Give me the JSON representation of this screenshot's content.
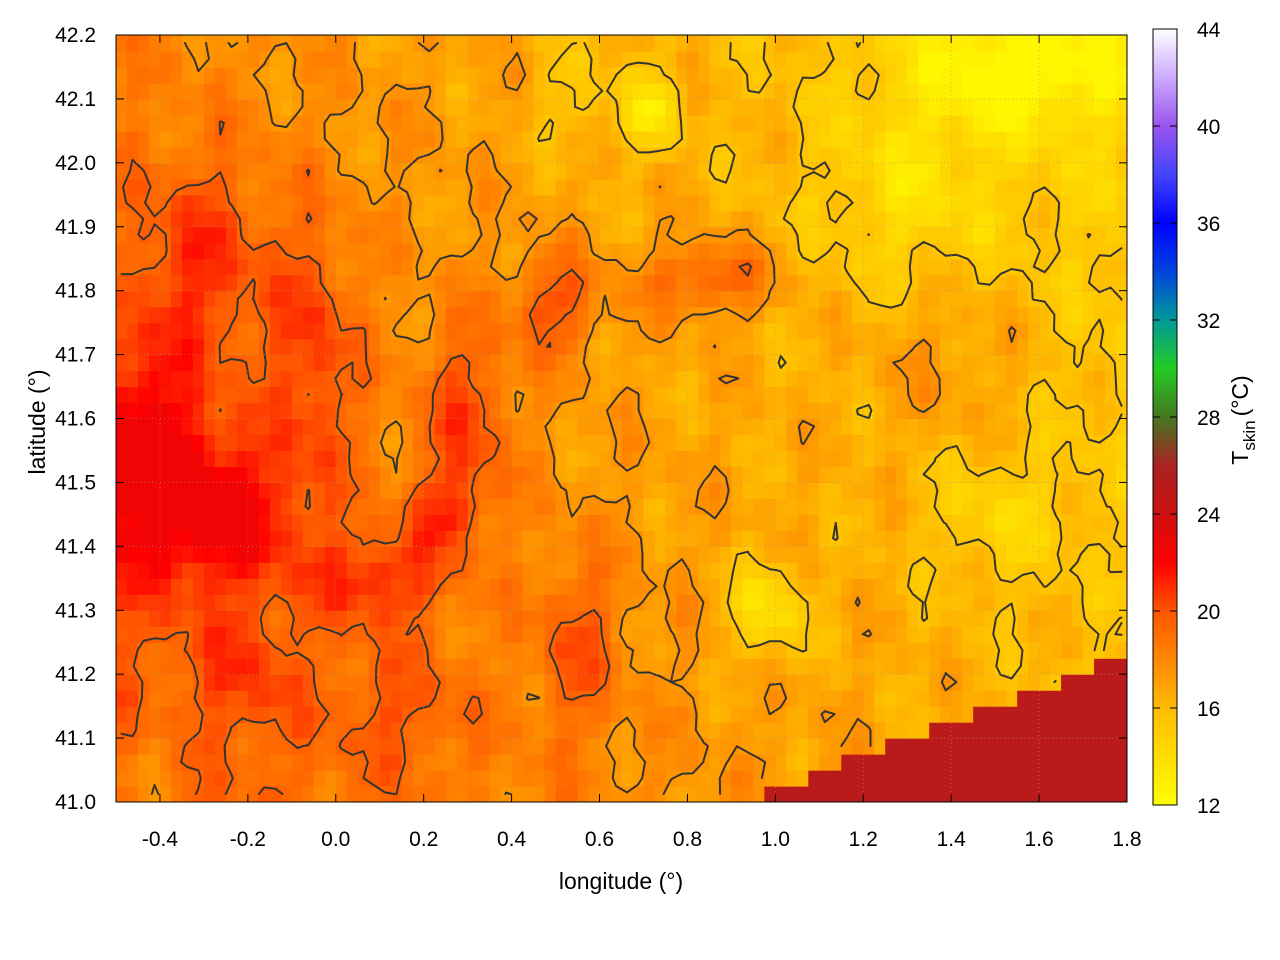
{
  "chart_data": {
    "type": "heatmap",
    "xlabel": "longitude (°)",
    "ylabel": "latitude (°)",
    "colorbar_label_main": "T",
    "colorbar_label_sub": "skin",
    "colorbar_label_unit": "(°C)",
    "xlim": [
      -0.5,
      1.8
    ],
    "ylim": [
      41.0,
      42.2
    ],
    "x_ticks": [
      {
        "value": -0.4,
        "label": "-0.4"
      },
      {
        "value": -0.2,
        "label": "-0.2"
      },
      {
        "value": 0.0,
        "label": "0.0"
      },
      {
        "value": 0.2,
        "label": "0.2"
      },
      {
        "value": 0.4,
        "label": "0.4"
      },
      {
        "value": 0.6,
        "label": "0.6"
      },
      {
        "value": 0.8,
        "label": "0.8"
      },
      {
        "value": 1.0,
        "label": "1.0"
      },
      {
        "value": 1.2,
        "label": "1.2"
      },
      {
        "value": 1.4,
        "label": "1.4"
      },
      {
        "value": 1.6,
        "label": "1.6"
      },
      {
        "value": 1.8,
        "label": "1.8"
      }
    ],
    "y_ticks": [
      {
        "value": 41.0,
        "label": "41.0"
      },
      {
        "value": 41.1,
        "label": "41.1"
      },
      {
        "value": 41.2,
        "label": "41.2"
      },
      {
        "value": 41.3,
        "label": "41.3"
      },
      {
        "value": 41.4,
        "label": "41.4"
      },
      {
        "value": 41.5,
        "label": "41.5"
      },
      {
        "value": 41.6,
        "label": "41.6"
      },
      {
        "value": 41.7,
        "label": "41.7"
      },
      {
        "value": 41.8,
        "label": "41.8"
      },
      {
        "value": 41.9,
        "label": "41.9"
      },
      {
        "value": 42.0,
        "label": "42.0"
      },
      {
        "value": 42.1,
        "label": "42.1"
      },
      {
        "value": 42.2,
        "label": "42.2"
      }
    ],
    "colorbar": {
      "range": [
        12,
        44
      ],
      "ticks": [
        {
          "value": 12,
          "label": "12"
        },
        {
          "value": 16,
          "label": "16"
        },
        {
          "value": 20,
          "label": "20"
        },
        {
          "value": 24,
          "label": "24"
        },
        {
          "value": 28,
          "label": "28"
        },
        {
          "value": 32,
          "label": "32"
        },
        {
          "value": 36,
          "label": "36"
        },
        {
          "value": 40,
          "label": "40"
        },
        {
          "value": 44,
          "label": "44"
        }
      ],
      "stops": [
        {
          "value": 12,
          "color": "#ffff00"
        },
        {
          "value": 16,
          "color": "#ffbb00"
        },
        {
          "value": 20,
          "color": "#ff5500"
        },
        {
          "value": 22,
          "color": "#ff0000"
        },
        {
          "value": 24,
          "color": "#cc1111"
        },
        {
          "value": 26,
          "color": "#aa2222"
        },
        {
          "value": 28,
          "color": "#447722"
        },
        {
          "value": 30,
          "color": "#22cc22"
        },
        {
          "value": 32,
          "color": "#009999"
        },
        {
          "value": 34,
          "color": "#0044dd"
        },
        {
          "value": 36,
          "color": "#0000ff"
        },
        {
          "value": 38,
          "color": "#4444ff"
        },
        {
          "value": 40,
          "color": "#9955ee"
        },
        {
          "value": 42,
          "color": "#ccaaff"
        },
        {
          "value": 44,
          "color": "#ffffff"
        }
      ]
    },
    "grid": true,
    "contours": true,
    "sea_temperature": 25,
    "field_notes": "Land skin temperature mostly 14-20 °C (yellow-orange); warmest land (~21 °C) in the western lowlands around lon -0.5 to 0.3, lat 41.3-41.8; coolest (~12-13 °C) in the north-east and the highlands near lon 0.6-0.9, lat 42.0-42.2 and lon 0.9-1.1, lat 41.3; sea area in the south-east corner at ~25 °C."
  }
}
